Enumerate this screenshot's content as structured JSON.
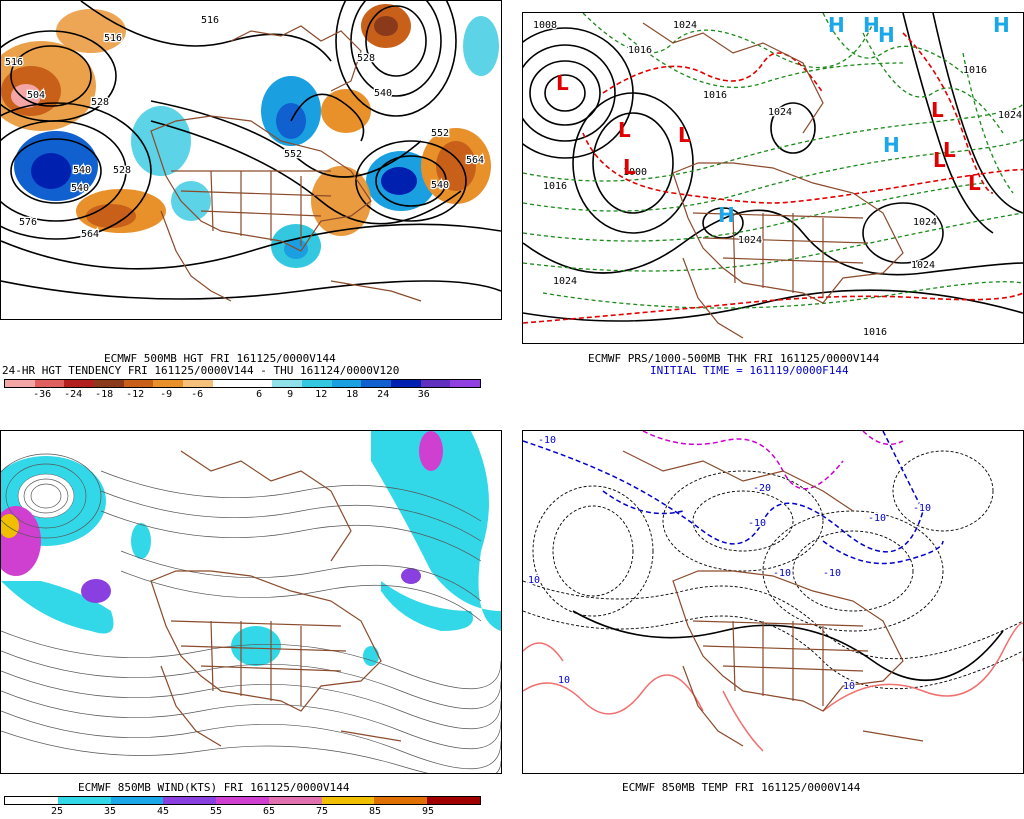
{
  "panels": {
    "top_left": {
      "caption1": "ECMWF 500MB HGT FRI 161125/0000V144",
      "caption2": "24-HR HGT TENDENCY FRI 161125/0000V144 - THU 161124/0000V120",
      "colorbar_colors": [
        "#f4a6a6",
        "#e06060",
        "#b22020",
        "#8a3a1a",
        "#c8601a",
        "#e8902a",
        "#f5c07a",
        "#ffffff",
        "#ffffff",
        "#8fe0e8",
        "#33c8e0",
        "#1aa0e0",
        "#1060d0",
        "#0020b0",
        "#6030c0",
        "#9040e0"
      ],
      "colorbar_ticks": [
        "-36",
        "-24",
        "-18",
        "-12",
        "-9",
        "-6",
        "6",
        "9",
        "12",
        "18",
        "24",
        "36"
      ],
      "contour_labels": [
        "516",
        "504",
        "528",
        "516",
        "528",
        "540",
        "552",
        "564",
        "540",
        "528",
        "552",
        "540",
        "576",
        "564",
        "540",
        "552",
        "516"
      ]
    },
    "top_right": {
      "caption1": "ECMWF PRS/1000-500MB THK FRI 161125/0000V144",
      "caption2": "INITIAL TIME = 161119/0000F144",
      "contour_labels": [
        "1008",
        "1024",
        "1016",
        "1016",
        "1000",
        "1024",
        "1016",
        "1024",
        "1024",
        "1024",
        "1024",
        "1016",
        "1024",
        "1016"
      ],
      "low_symbol": "L",
      "high_symbol": "H"
    },
    "bottom_left": {
      "caption1": "ECMWF 850MB WIND(KTS) FRI 161125/0000V144",
      "colorbar_colors": [
        "#ffffff",
        "#33d8e8",
        "#1aa8e8",
        "#8a40e0",
        "#d040d0",
        "#e070b0",
        "#f0c000",
        "#e07000",
        "#a00000"
      ],
      "colorbar_ticks": [
        "25",
        "35",
        "45",
        "55",
        "65",
        "75",
        "85",
        "95"
      ]
    },
    "bottom_right": {
      "caption1": "ECMWF 850MB TEMP FRI 161125/0000V144",
      "contour_labels": [
        "-10",
        "-10",
        "-20",
        "-10",
        "-10",
        "-10",
        "-10",
        "10",
        "10",
        "10"
      ]
    }
  },
  "colors": {
    "map_border": "#8b4a2b",
    "height_contour": "#000000",
    "thickness_cold": "#1a8a1a",
    "thickness_warm": "#e00000",
    "low_red": "#e00000",
    "high_blue": "#1aa8e8",
    "temp_cold": "#0000cc",
    "temp_very_cold": "#cc00cc",
    "temp_warm": "#f07070"
  }
}
